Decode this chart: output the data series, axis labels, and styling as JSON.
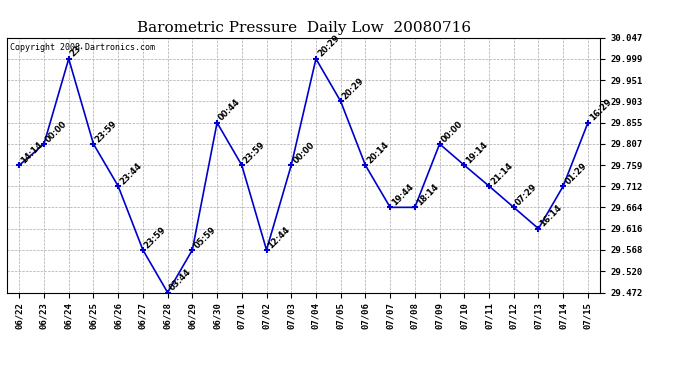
{
  "title": "Barometric Pressure  Daily Low  20080716",
  "copyright": "Copyright 2008 Dartronics.com",
  "x_labels": [
    "06/22",
    "06/23",
    "06/24",
    "06/25",
    "06/26",
    "06/27",
    "06/28",
    "06/29",
    "06/30",
    "07/01",
    "07/02",
    "07/03",
    "07/04",
    "07/05",
    "07/06",
    "07/07",
    "07/08",
    "07/09",
    "07/10",
    "07/11",
    "07/12",
    "07/13",
    "07/14",
    "07/15"
  ],
  "y_values": [
    29.759,
    29.807,
    29.999,
    29.807,
    29.712,
    29.568,
    29.472,
    29.568,
    29.855,
    29.759,
    29.568,
    29.759,
    29.999,
    29.903,
    29.759,
    29.664,
    29.664,
    29.807,
    29.759,
    29.712,
    29.664,
    29.616,
    29.712,
    29.855
  ],
  "point_labels": [
    "14:14",
    "00:00",
    "23:",
    "23:59",
    "23:44",
    "23:59",
    "03:44",
    "05:59",
    "00:44",
    "23:59",
    "12:44",
    "00:00",
    "20:29",
    "20:29",
    "20:14",
    "19:44",
    "18:14",
    "00:00",
    "19:14",
    "21:14",
    "07:29",
    "16:14",
    "01:29",
    "16:29"
  ],
  "line_color": "#0000cc",
  "marker_color": "#0000cc",
  "bg_color": "#ffffff",
  "grid_color": "#aaaaaa",
  "ylim_min": 29.472,
  "ylim_max": 30.047,
  "yticks": [
    29.472,
    29.52,
    29.568,
    29.616,
    29.664,
    29.712,
    29.759,
    29.807,
    29.855,
    29.903,
    29.951,
    29.999,
    30.047
  ],
  "title_fontsize": 11,
  "label_fontsize": 6,
  "tick_fontsize": 6.5,
  "copyright_fontsize": 6
}
